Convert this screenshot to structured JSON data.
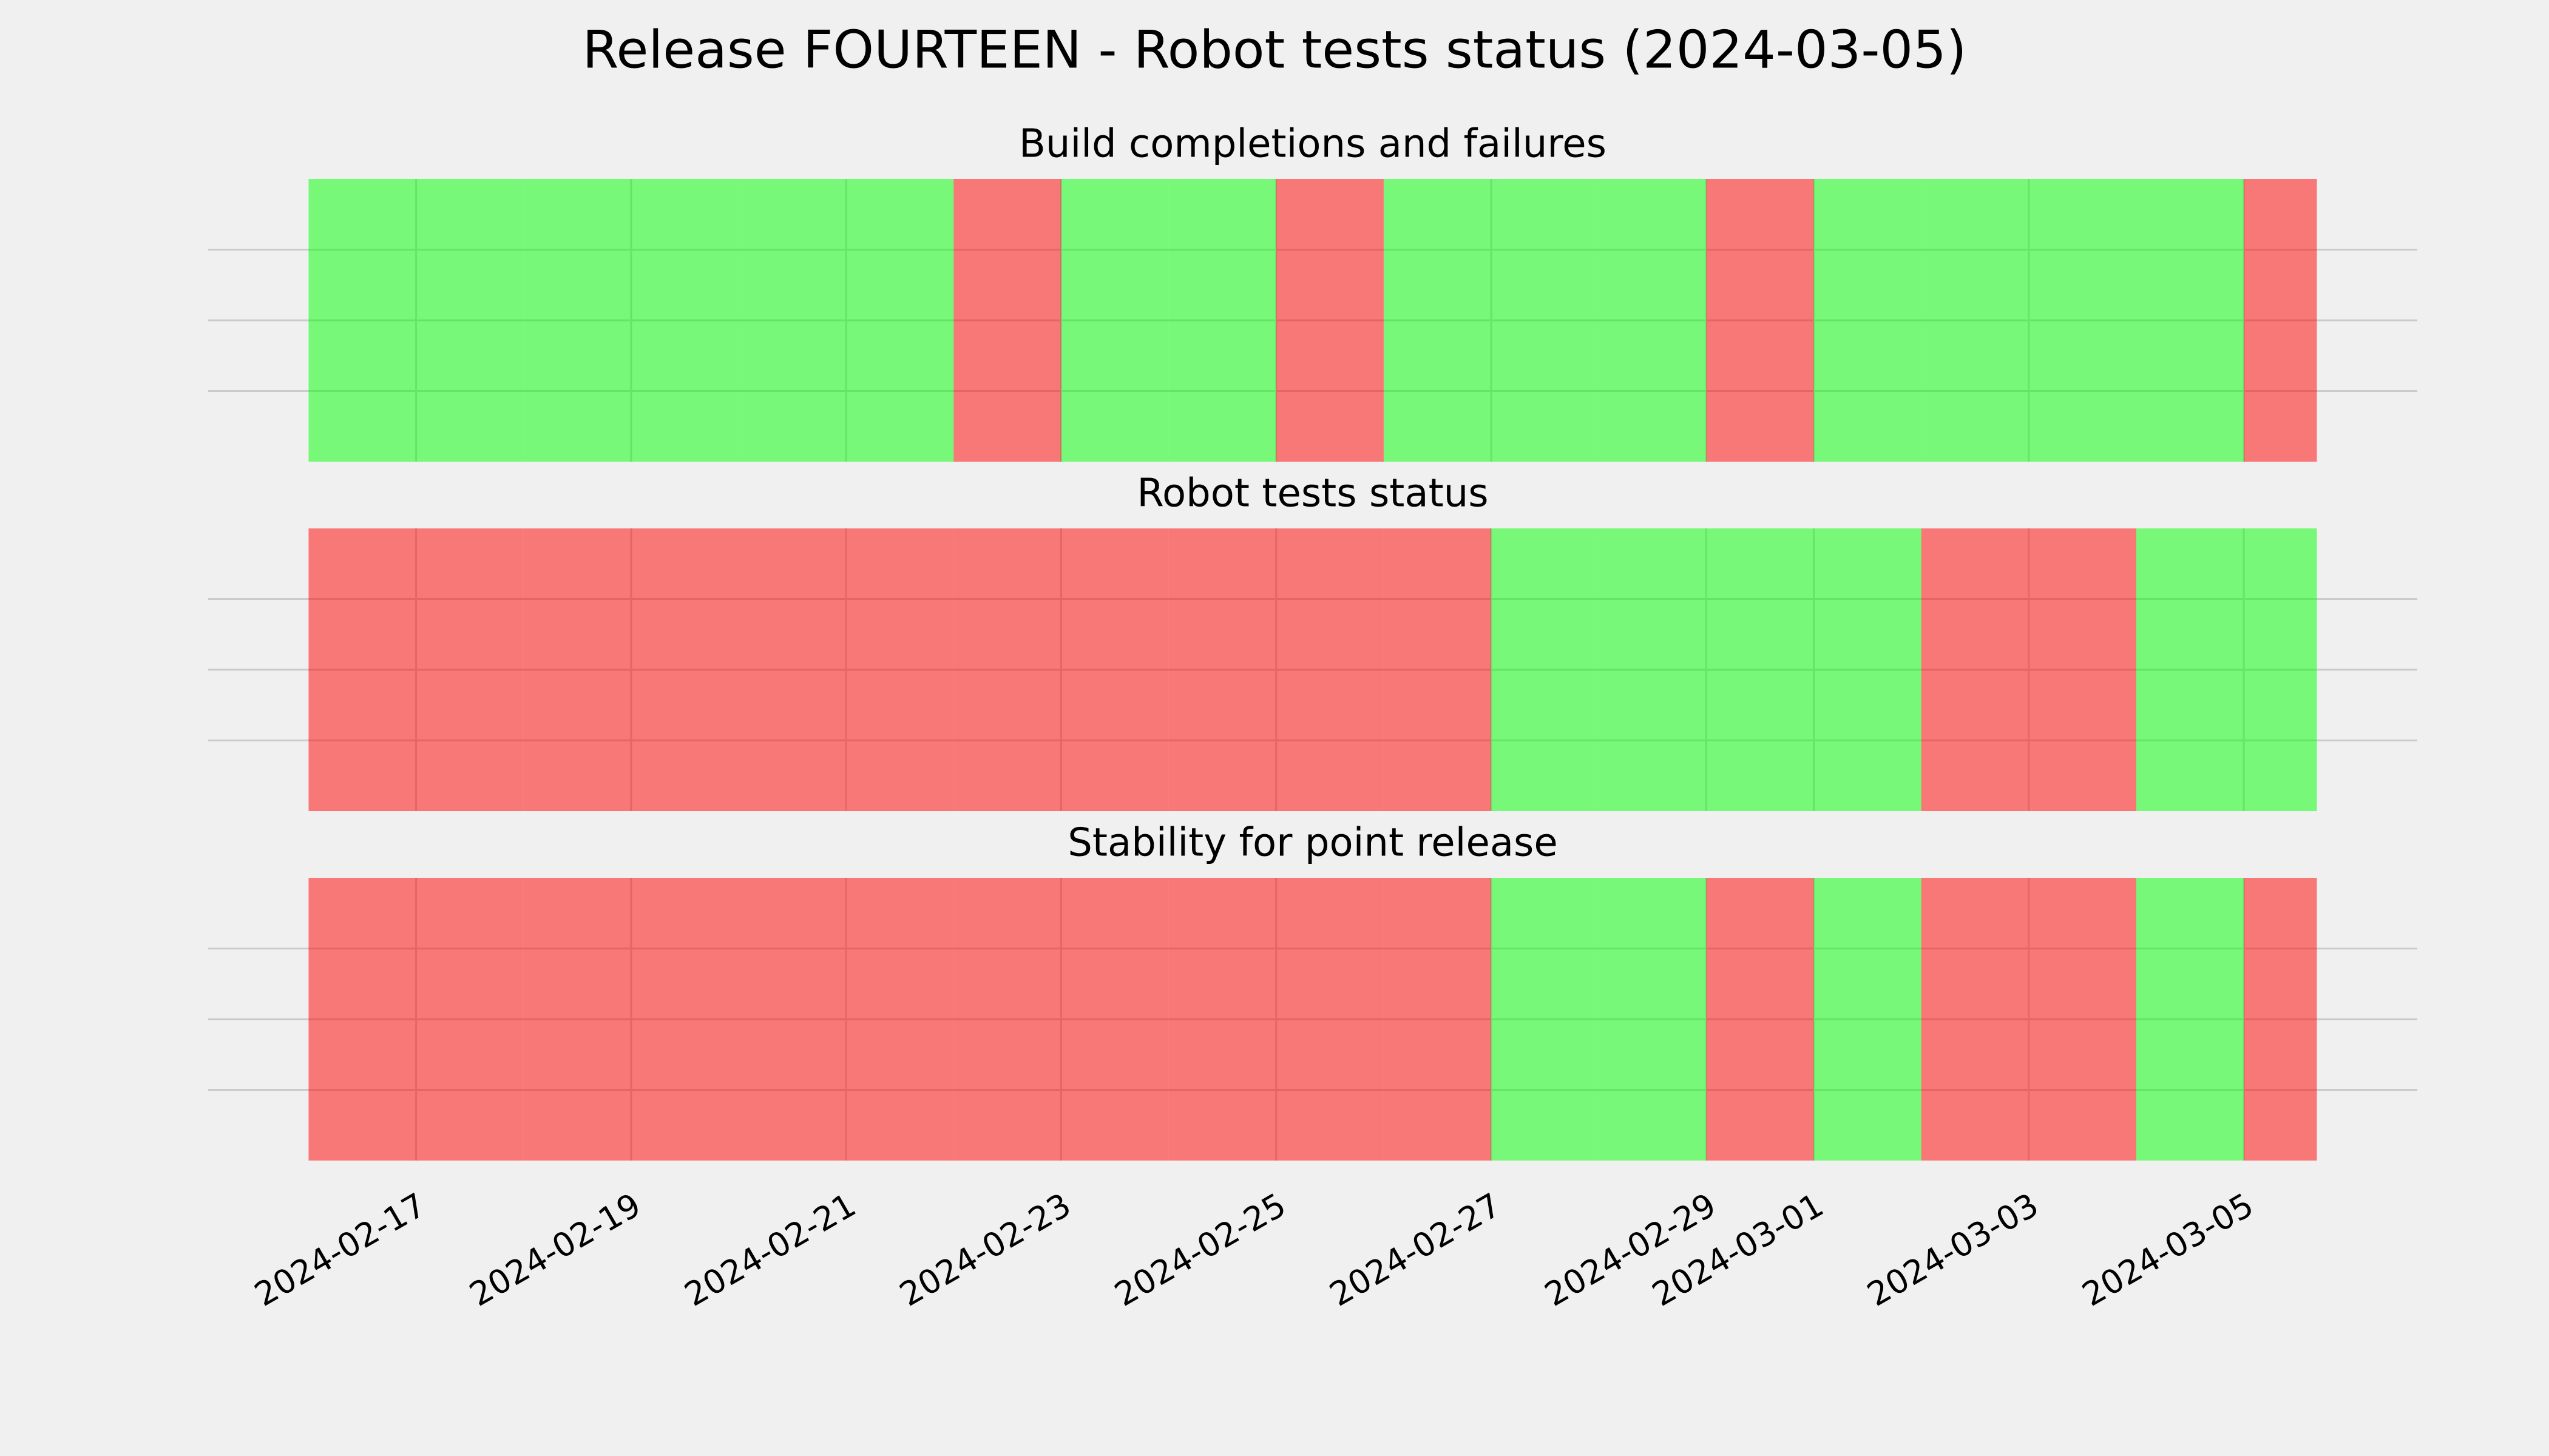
{
  "title": "Release FOURTEEN - Robot tests status (2024-03-05)",
  "chart_data": [
    {
      "type": "timeline",
      "title": "Build completions and failures",
      "x": [
        "2024-02-16",
        "2024-02-17",
        "2024-02-18",
        "2024-02-19",
        "2024-02-20",
        "2024-02-21",
        "2024-02-22",
        "2024-02-23",
        "2024-02-24",
        "2024-02-25",
        "2024-02-26",
        "2024-02-27",
        "2024-02-28",
        "2024-02-29",
        "2024-03-01",
        "2024-03-02",
        "2024-03-03",
        "2024-03-04",
        "2024-03-05"
      ],
      "x_end": "2024-03-05T16:19",
      "values": [
        1,
        1,
        1,
        1,
        1,
        1,
        0,
        1,
        1,
        0,
        1,
        1,
        1,
        0,
        1,
        1,
        1,
        1,
        0
      ],
      "colors": [
        "#ff0000",
        "#00ff00"
      ],
      "xlim": [
        "2024-02-15T01:35",
        "2024-03-06T14:44"
      ],
      "xticks": [
        "2024-02-17",
        "2024-02-19",
        "2024-02-21",
        "2024-02-23",
        "2024-02-25",
        "2024-02-27",
        "2024-02-29",
        "2024-03-01",
        "2024-03-03",
        "2024-03-05"
      ],
      "ylim": [
        0,
        1
      ],
      "yticks": [
        0.25,
        0.5,
        0.75
      ],
      "grid": true
    },
    {
      "type": "timeline",
      "title": "Robot tests status",
      "x": [
        "2024-02-16",
        "2024-02-17",
        "2024-02-18",
        "2024-02-19",
        "2024-02-20",
        "2024-02-21",
        "2024-02-22",
        "2024-02-23",
        "2024-02-24",
        "2024-02-25",
        "2024-02-26",
        "2024-02-27",
        "2024-02-28",
        "2024-02-29",
        "2024-03-01",
        "2024-03-02",
        "2024-03-03",
        "2024-03-04",
        "2024-03-05"
      ],
      "x_end": "2024-03-05T16:19",
      "values": [
        0,
        0,
        0,
        0,
        0,
        0,
        0,
        0,
        0,
        0,
        0,
        1,
        1,
        1,
        1,
        0,
        0,
        1,
        1
      ],
      "colors": [
        "#ff0000",
        "#00ff00"
      ],
      "xlim": [
        "2024-02-15T01:35",
        "2024-03-06T14:44"
      ],
      "xticks": [
        "2024-02-17",
        "2024-02-19",
        "2024-02-21",
        "2024-02-23",
        "2024-02-25",
        "2024-02-27",
        "2024-02-29",
        "2024-03-01",
        "2024-03-03",
        "2024-03-05"
      ],
      "ylim": [
        0,
        1
      ],
      "yticks": [
        0.25,
        0.5,
        0.75
      ],
      "grid": true
    },
    {
      "type": "timeline",
      "title": "Stability for point release",
      "x": [
        "2024-02-16",
        "2024-02-17",
        "2024-02-18",
        "2024-02-19",
        "2024-02-20",
        "2024-02-21",
        "2024-02-22",
        "2024-02-23",
        "2024-02-24",
        "2024-02-25",
        "2024-02-26",
        "2024-02-27",
        "2024-02-28",
        "2024-02-29",
        "2024-03-01",
        "2024-03-02",
        "2024-03-03",
        "2024-03-04",
        "2024-03-05"
      ],
      "x_end": "2024-03-05T16:19",
      "values": [
        0,
        0,
        0,
        0,
        0,
        0,
        0,
        0,
        0,
        0,
        0,
        1,
        1,
        0,
        1,
        0,
        0,
        1,
        0
      ],
      "colors": [
        "#ff0000",
        "#00ff00"
      ],
      "xlim": [
        "2024-02-15T01:35",
        "2024-03-06T14:44"
      ],
      "xticks": [
        "2024-02-17",
        "2024-02-19",
        "2024-02-21",
        "2024-02-23",
        "2024-02-25",
        "2024-02-27",
        "2024-02-29",
        "2024-03-01",
        "2024-03-03",
        "2024-03-05"
      ],
      "ylim": [
        0,
        1
      ],
      "yticks": [
        0.25,
        0.5,
        0.75
      ],
      "grid": true
    }
  ]
}
